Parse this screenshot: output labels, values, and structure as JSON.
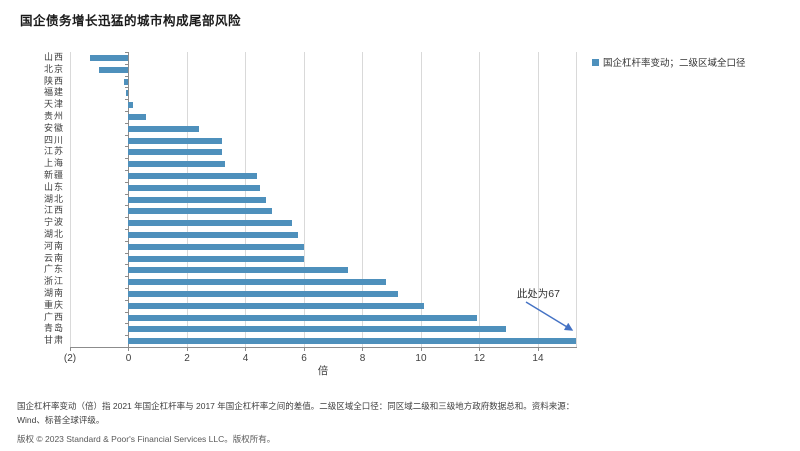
{
  "title": "国企债务增长迅猛的城市构成尾部风险",
  "legend": {
    "label": "国企杠杆率变动；二级区域全口径",
    "color": "#4E90BC"
  },
  "annotation": {
    "text": "此处为67",
    "arrow_color": "#4472C4",
    "points_to": "甘肃"
  },
  "footnotes": {
    "line1": "国企杠杆率变动（倍）指 2021 年国企杠杆率与 2017 年国企杠杆率之间的差值。二级区域全口径：同区域二级和三级地方政府数据总和。资料来源：",
    "line2": "Wind、标普全球评级。"
  },
  "copyright": "版权 © 2023 Standard & Poor's Financial Services LLC。版权所有。",
  "chart_data": {
    "type": "bar",
    "orientation": "horizontal",
    "title": "国企债务增长迅猛的城市构成尾部风险",
    "series_name": "国企杠杆率变动；二级区域全口径",
    "categories": [
      "山西",
      "北京",
      "陕西",
      "福建",
      "天津",
      "贵州",
      "安徽",
      "四川",
      "江苏",
      "上海",
      "新疆",
      "山东",
      "湖北",
      "江西",
      "宁波",
      "湖北",
      "河南",
      "云南",
      "广东",
      "浙江",
      "湖南",
      "重庆",
      "广西",
      "青岛",
      "甘肃"
    ],
    "values": [
      -1.3,
      -1.0,
      -0.15,
      -0.1,
      0.15,
      0.6,
      2.4,
      3.2,
      3.2,
      3.3,
      4.4,
      4.5,
      4.7,
      4.9,
      5.6,
      5.8,
      6.0,
      6.0,
      7.5,
      8.8,
      9.2,
      10.1,
      11.9,
      12.9,
      67
    ],
    "clip_note": "甘肃 bar is clipped at the right edge of the plot; annotation states actual value is 67",
    "xlabel": "倍",
    "ylabel": "",
    "xlim": [
      -2,
      15.3
    ],
    "xticks": {
      "values": [
        -2,
        0,
        2,
        4,
        6,
        8,
        10,
        12,
        14
      ],
      "labels": [
        "(2)",
        "0",
        "2",
        "4",
        "6",
        "8",
        "10",
        "12",
        "14"
      ]
    },
    "bar_color": "#4E90BC",
    "grid": true,
    "legend_position": "top-right"
  }
}
